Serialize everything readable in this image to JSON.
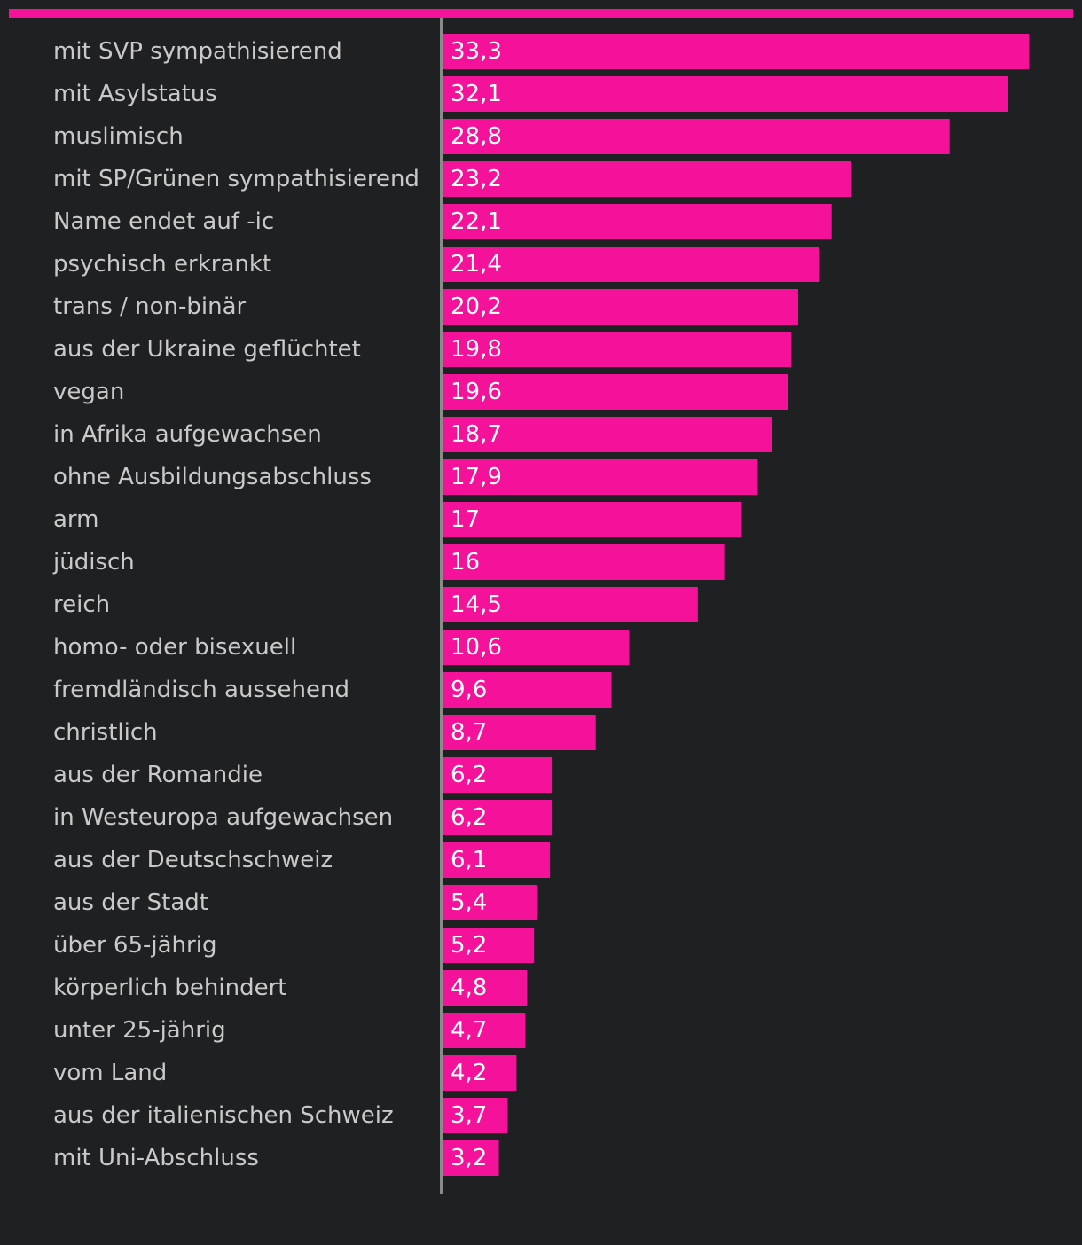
{
  "colors": {
    "background": "#1f2022",
    "bar": "#f5129a",
    "top_rule": "#f5129a",
    "axis": "#8a8a8a",
    "category_text": "#c9c9c9",
    "value_text": "#ffffff"
  },
  "chart_data": {
    "type": "bar",
    "orientation": "horizontal",
    "title": "",
    "xlabel": "",
    "ylabel": "",
    "xlim": [
      0,
      33.3
    ],
    "grid": false,
    "legend": "none",
    "categories": [
      "mit SVP sympathisierend",
      "mit Asylstatus",
      "muslimisch",
      "mit SP/Grünen sympathisierend",
      "Name endet auf -ic",
      "psychisch erkrankt",
      "trans / non-binär",
      "aus der Ukraine geflüchtet",
      "vegan",
      "in Afrika aufgewachsen",
      "ohne Ausbildungsabschluss",
      "arm",
      "jüdisch",
      "reich",
      "homo- oder bisexuell",
      "fremdländisch aussehend",
      "christlich",
      "aus der Romandie",
      "in Westeuropa aufgewachsen",
      "aus der Deutschschweiz",
      "aus der Stadt",
      "über 65-jährig",
      "körperlich behindert",
      "unter 25-jährig",
      "vom Land",
      "aus der italienischen Schweiz",
      "mit Uni-Abschluss"
    ],
    "values": [
      33.3,
      32.1,
      28.8,
      23.2,
      22.1,
      21.4,
      20.2,
      19.8,
      19.6,
      18.7,
      17.9,
      17,
      16,
      14.5,
      10.6,
      9.6,
      8.7,
      6.2,
      6.2,
      6.1,
      5.4,
      5.2,
      4.8,
      4.7,
      4.2,
      3.7,
      3.2
    ],
    "value_labels": [
      "33,3",
      "32,1",
      "28,8",
      "23,2",
      "22,1",
      "21,4",
      "20,2",
      "19,8",
      "19,6",
      "18,7",
      "17,9",
      "17",
      "16",
      "14,5",
      "10,6",
      "9,6",
      "8,7",
      "6,2",
      "6,2",
      "6,1",
      "5,4",
      "5,2",
      "4,8",
      "4,7",
      "4,2",
      "3,7",
      "3,2"
    ]
  }
}
